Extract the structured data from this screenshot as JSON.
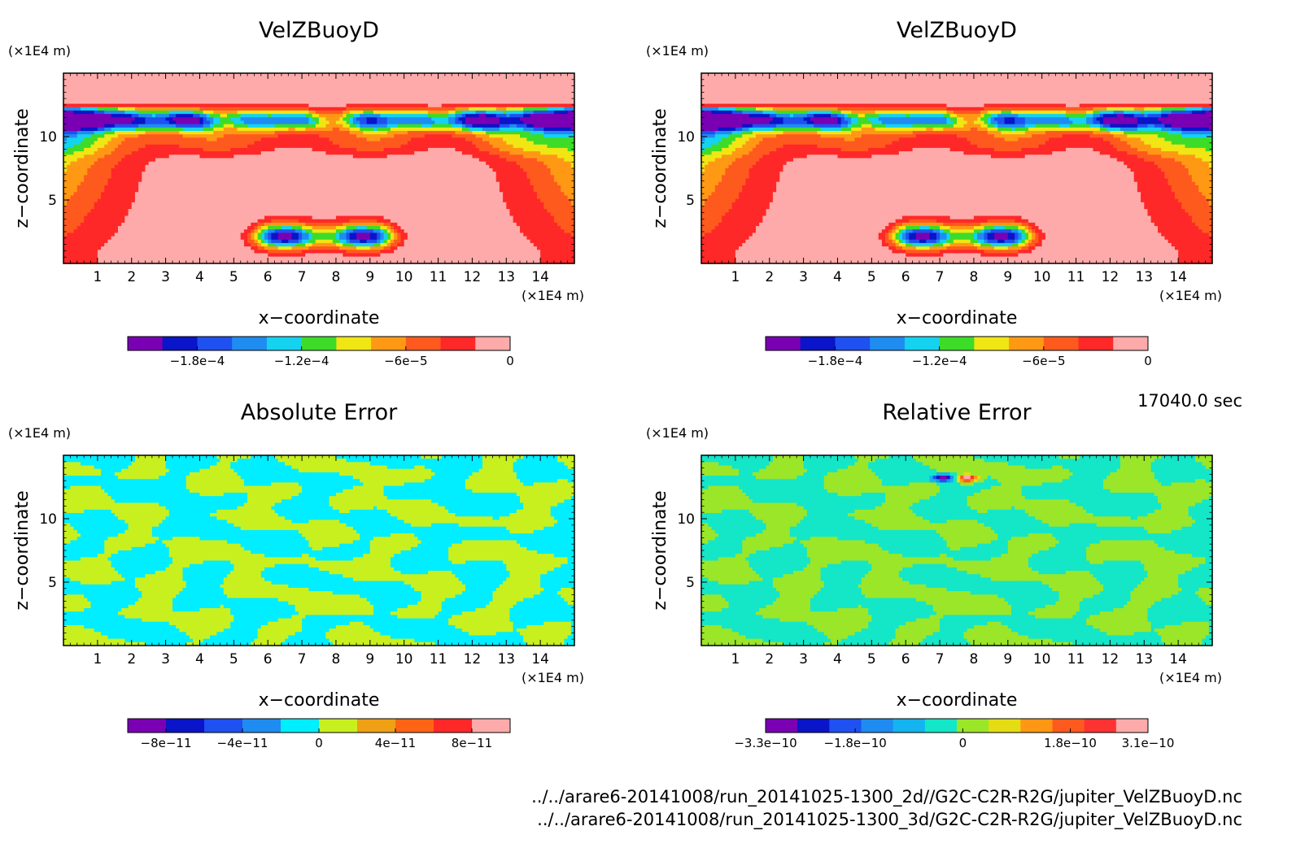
{
  "time_label": "17040.0 sec",
  "file_paths": [
    "../../arare6-20141008/run_20141025-1300_2d//G2C-C2R-R2G/jupiter_VelZBuoyD.nc",
    "../../arare6-20141008/run_20141025-1300_3d/G2C-C2R-R2G/jupiter_VelZBuoyD.nc"
  ],
  "colors": {
    "velz": [
      "#7a00b4",
      "#0a14c8",
      "#1f50f0",
      "#1e8cf0",
      "#14d2f0",
      "#3cdc28",
      "#f0e614",
      "#ff9914",
      "#ff5a1e",
      "#ff2828",
      "#ffaaaa"
    ],
    "abs": [
      "#7a00b4",
      "#0a14c8",
      "#1f50f0",
      "#1e8cf0",
      "#00eeff",
      "#c8f01e",
      "#f0a014",
      "#ff6414",
      "#ff2828",
      "#ffaaaa"
    ],
    "rel": [
      "#7a00b4",
      "#0a14c8",
      "#1f50f0",
      "#1e8cf0",
      "#14b4f0",
      "#14e6c8",
      "#9be628",
      "#e6dc14",
      "#ff9614",
      "#ff5a1e",
      "#ff3232",
      "#ffaaaa"
    ]
  },
  "chart_data": [
    {
      "type": "heatmap",
      "title": "VelZBuoyD",
      "xlabel": "x−coordinate",
      "ylabel": "z−coordinate",
      "x_unit": "(×1E4 m)",
      "y_unit": "(×1E4 m)",
      "xlim": [
        0,
        15
      ],
      "ylim": [
        0,
        15
      ],
      "x_ticks": [
        "1",
        "2",
        "3",
        "4",
        "5",
        "6",
        "7",
        "8",
        "9",
        "10",
        "11",
        "12",
        "13",
        "14"
      ],
      "y_ticks": [
        "5",
        "10"
      ],
      "field": "velz",
      "colorbar": {
        "range": [
          -0.00022,
          0
        ],
        "n_colors": 11,
        "tick_values": [
          -0.00018,
          -0.00012,
          -6e-05,
          0
        ],
        "tick_labels": [
          "−1.8e−4",
          "−1.2e−4",
          "−6e−5",
          "0"
        ]
      }
    },
    {
      "type": "heatmap",
      "title": "VelZBuoyD",
      "xlabel": "x−coordinate",
      "ylabel": "z−coordinate",
      "x_unit": "(×1E4 m)",
      "y_unit": "(×1E4 m)",
      "xlim": [
        0,
        15
      ],
      "ylim": [
        0,
        15
      ],
      "x_ticks": [
        "1",
        "2",
        "3",
        "4",
        "5",
        "6",
        "7",
        "8",
        "9",
        "10",
        "11",
        "12",
        "13",
        "14"
      ],
      "y_ticks": [
        "5",
        "10"
      ],
      "field": "velz",
      "colorbar": {
        "range": [
          -0.00022,
          0
        ],
        "n_colors": 11,
        "tick_values": [
          -0.00018,
          -0.00012,
          -6e-05,
          0
        ],
        "tick_labels": [
          "−1.8e−4",
          "−1.2e−4",
          "−6e−5",
          "0"
        ]
      }
    },
    {
      "type": "heatmap",
      "title": "Absolute Error",
      "xlabel": "x−coordinate",
      "ylabel": "z−coordinate",
      "x_unit": "(×1E4 m)",
      "y_unit": "(×1E4 m)",
      "xlim": [
        0,
        15
      ],
      "ylim": [
        0,
        15
      ],
      "x_ticks": [
        "1",
        "2",
        "3",
        "4",
        "5",
        "6",
        "7",
        "8",
        "9",
        "10",
        "11",
        "12",
        "13",
        "14"
      ],
      "y_ticks": [
        "5",
        "10"
      ],
      "field": "abs",
      "colorbar": {
        "range": [
          -1e-10,
          1e-10
        ],
        "n_colors": 10,
        "tick_values": [
          -8e-11,
          -4e-11,
          0,
          4e-11,
          8e-11
        ],
        "tick_labels": [
          "−8e−11",
          "−4e−11",
          "0",
          "4e−11",
          "8e−11"
        ]
      }
    },
    {
      "type": "heatmap",
      "title": "Relative Error",
      "xlabel": "x−coordinate",
      "ylabel": "z−coordinate",
      "x_unit": "(×1E4 m)",
      "y_unit": "(×1E4 m)",
      "xlim": [
        0,
        15
      ],
      "ylim": [
        0,
        15
      ],
      "x_ticks": [
        "1",
        "2",
        "3",
        "4",
        "5",
        "6",
        "7",
        "8",
        "9",
        "10",
        "11",
        "12",
        "13",
        "14"
      ],
      "y_ticks": [
        "5",
        "10"
      ],
      "field": "rel",
      "colorbar": {
        "range": [
          -3.3e-10,
          3.1e-10
        ],
        "n_colors": 12,
        "tick_values": [
          -3.3e-10,
          -1.8e-10,
          0,
          1.8e-10,
          3.1e-10
        ],
        "tick_labels": [
          "−3.3e−10",
          "−1.8e−10",
          "0",
          "1.8e−10",
          "3.1e−10"
        ]
      }
    }
  ]
}
